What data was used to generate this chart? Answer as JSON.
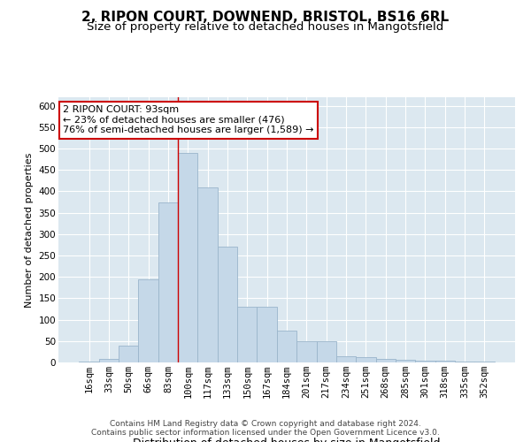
{
  "title": "2, RIPON COURT, DOWNEND, BRISTOL, BS16 6RL",
  "subtitle": "Size of property relative to detached houses in Mangotsfield",
  "xlabel": "Distribution of detached houses by size in Mangotsfield",
  "ylabel": "Number of detached properties",
  "categories": [
    "16sqm",
    "33sqm",
    "50sqm",
    "66sqm",
    "83sqm",
    "100sqm",
    "117sqm",
    "133sqm",
    "150sqm",
    "167sqm",
    "184sqm",
    "201sqm",
    "217sqm",
    "234sqm",
    "251sqm",
    "268sqm",
    "285sqm",
    "301sqm",
    "318sqm",
    "335sqm",
    "352sqm"
  ],
  "values": [
    2,
    8,
    40,
    195,
    375,
    490,
    410,
    270,
    130,
    130,
    75,
    50,
    50,
    15,
    12,
    8,
    7,
    5,
    5,
    2,
    2
  ],
  "bar_color": "#c5d8e8",
  "bar_edge_color": "#9ab5cb",
  "vline_x": 4.5,
  "vline_color": "#cc0000",
  "annotation_line1": "2 RIPON COURT: 93sqm",
  "annotation_line2": "← 23% of detached houses are smaller (476)",
  "annotation_line3": "76% of semi-detached houses are larger (1,589) →",
  "annotation_box_color": "#ffffff",
  "annotation_box_edge": "#cc0000",
  "ylim": [
    0,
    620
  ],
  "yticks": [
    0,
    50,
    100,
    150,
    200,
    250,
    300,
    350,
    400,
    450,
    500,
    550,
    600
  ],
  "footer_line1": "Contains HM Land Registry data © Crown copyright and database right 2024.",
  "footer_line2": "Contains public sector information licensed under the Open Government Licence v3.0.",
  "bg_color": "#dce8f0",
  "title_fontsize": 11,
  "subtitle_fontsize": 9.5,
  "xlabel_fontsize": 9,
  "ylabel_fontsize": 8,
  "tick_fontsize": 7.5,
  "footer_fontsize": 6.5,
  "annot_fontsize": 8
}
